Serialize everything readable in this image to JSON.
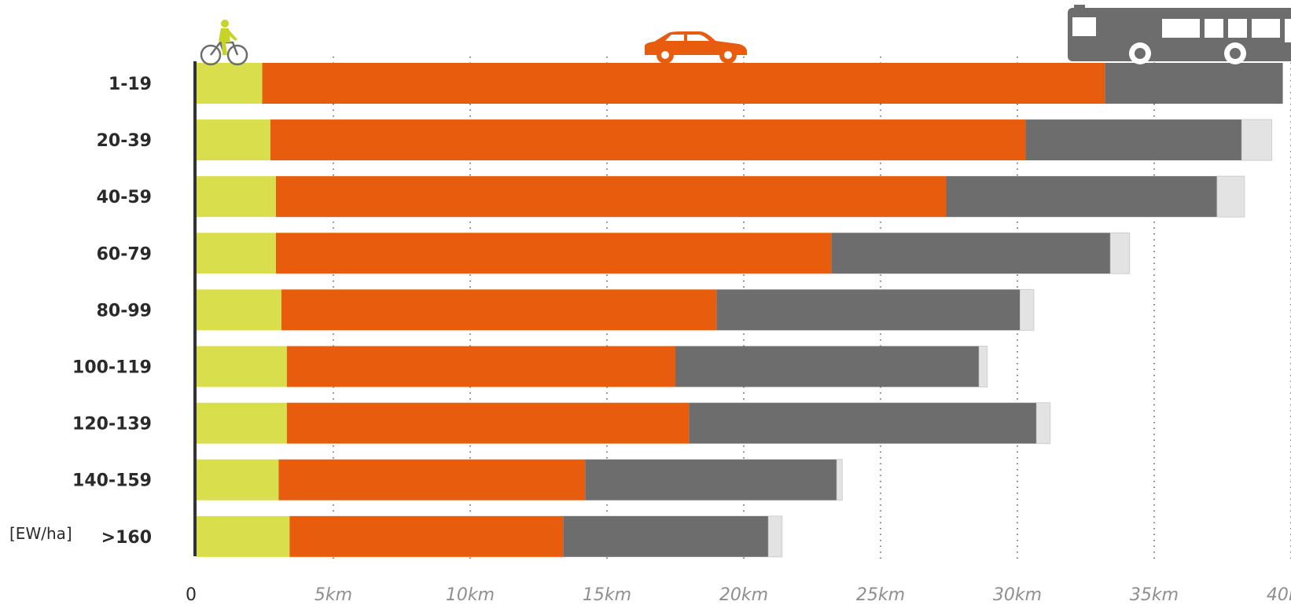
{
  "colors": {
    "bicycle": "#d9de4c",
    "car": "#e85c0d",
    "bus": "#6d6d6d",
    "other": "#e3e3e3",
    "axis": "#333333",
    "grid": "#555555"
  },
  "icons": [
    "bicycle-icon",
    "car-icon",
    "bus-icon"
  ],
  "chart_data": {
    "type": "bar",
    "orientation": "horizontal",
    "stacked": true,
    "categories": [
      "1-19",
      "20-39",
      "40-59",
      "60-79",
      "80-99",
      "100-119",
      "120-139",
      "140-159",
      ">160"
    ],
    "category_unit_label": "[EW/ha]",
    "series": [
      {
        "values": [
          2.4,
          2.7,
          2.9,
          2.9,
          3.1,
          3.3,
          3.3,
          3.0,
          3.4
        ]
      },
      {
        "values": [
          30.8,
          27.6,
          24.5,
          20.3,
          15.9,
          14.2,
          14.7,
          11.2,
          10.0
        ]
      },
      {
        "values": [
          6.5,
          7.9,
          9.9,
          10.2,
          11.1,
          11.1,
          12.7,
          9.2,
          7.5
        ]
      },
      {
        "values": [
          0.0,
          1.1,
          1.0,
          0.7,
          0.5,
          0.3,
          0.5,
          0.2,
          0.5
        ]
      }
    ],
    "xlim": [
      0,
      40
    ],
    "xticks": [
      0,
      5,
      10,
      15,
      20,
      25,
      30,
      35,
      40
    ],
    "xtick_labels": [
      "0",
      "5km",
      "10km",
      "15km",
      "20km",
      "25km",
      "30km",
      "35km",
      "40km"
    ],
    "grid": "vertical dotted",
    "legend": "icons above top bar"
  }
}
